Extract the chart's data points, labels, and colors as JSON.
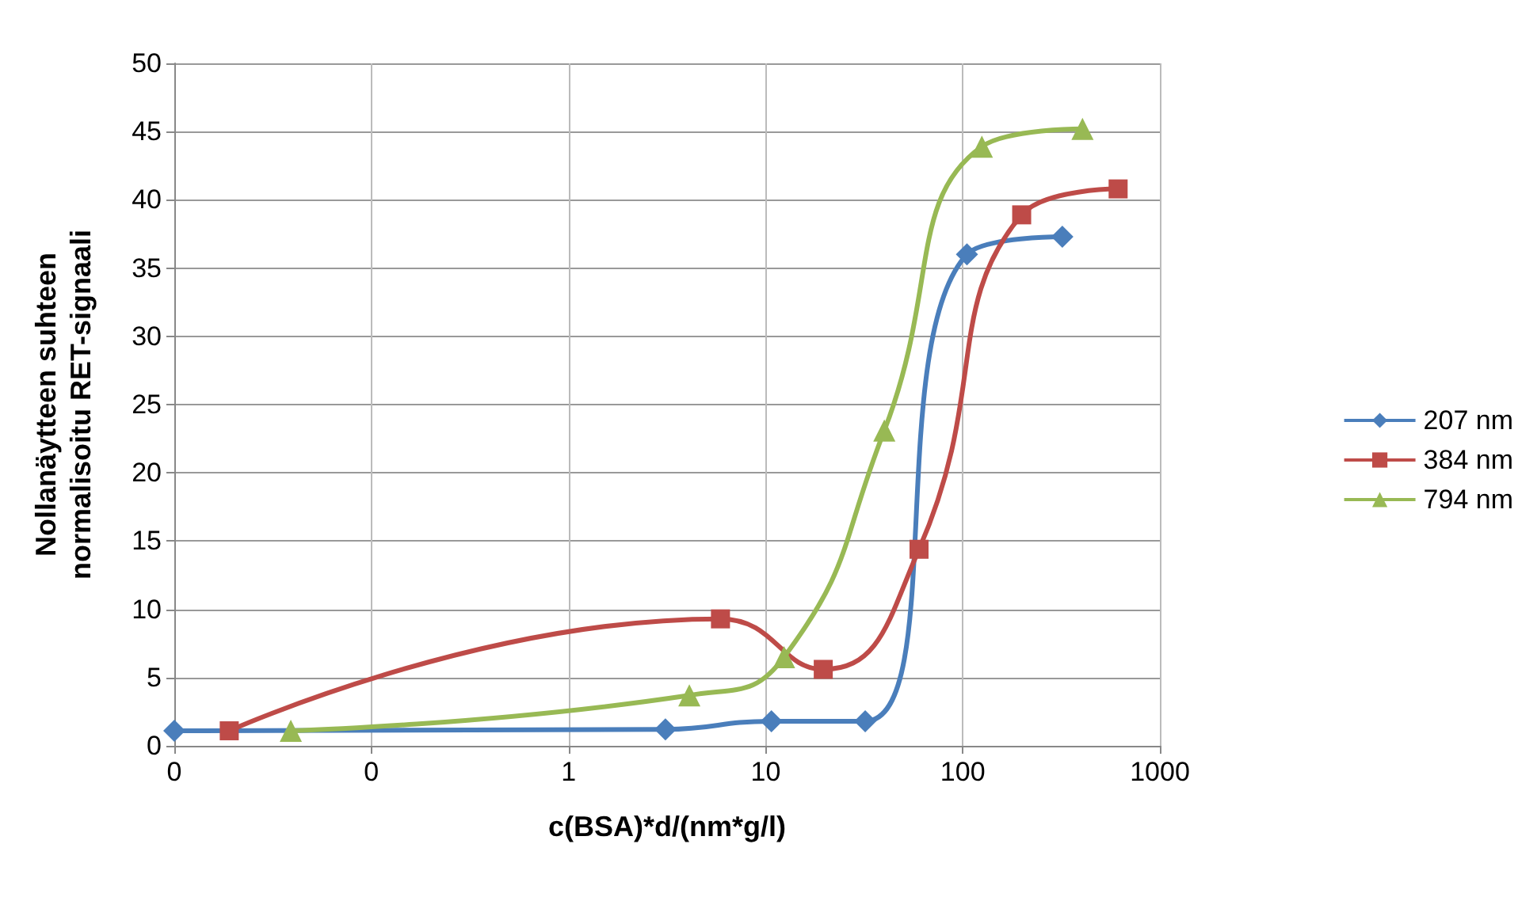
{
  "chart_data": {
    "type": "line",
    "xlabel": "c(BSA)*d/(nm*g/l)",
    "ylabel": "Nollanäytteen suhteen normalisoitu RET-signaali",
    "log": "x",
    "xlim": [
      0.01,
      1000
    ],
    "xticks": [
      {
        "value": 0.01,
        "label": "0"
      },
      {
        "value": 0.1,
        "label": "0"
      },
      1,
      10,
      100,
      1000
    ],
    "ylim": [
      0,
      50
    ],
    "yticks": [
      0,
      5,
      10,
      15,
      20,
      25,
      30,
      35,
      40,
      45,
      50
    ],
    "grid": true,
    "legend": "right",
    "series": [
      {
        "name": "207 nm",
        "color": "#4a7ebb",
        "marker": "diamond",
        "x": [
          0.01,
          3.1,
          10.7,
          32,
          105,
          320
        ],
        "values": [
          1.1,
          1.2,
          1.8,
          1.8,
          36,
          37.3
        ]
      },
      {
        "name": "384 nm",
        "color": "#be4b48",
        "marker": "square",
        "x": [
          0.019,
          5.9,
          19.6,
          60,
          199,
          614
        ],
        "values": [
          1.1,
          9.3,
          5.6,
          14.4,
          38.9,
          40.8
        ]
      },
      {
        "name": "794 nm",
        "color": "#98b954",
        "marker": "triangle",
        "x": [
          0.039,
          4.1,
          12.4,
          40,
          125,
          405
        ],
        "values": [
          1.1,
          3.7,
          6.5,
          23.1,
          43.9,
          45.2
        ]
      }
    ]
  }
}
